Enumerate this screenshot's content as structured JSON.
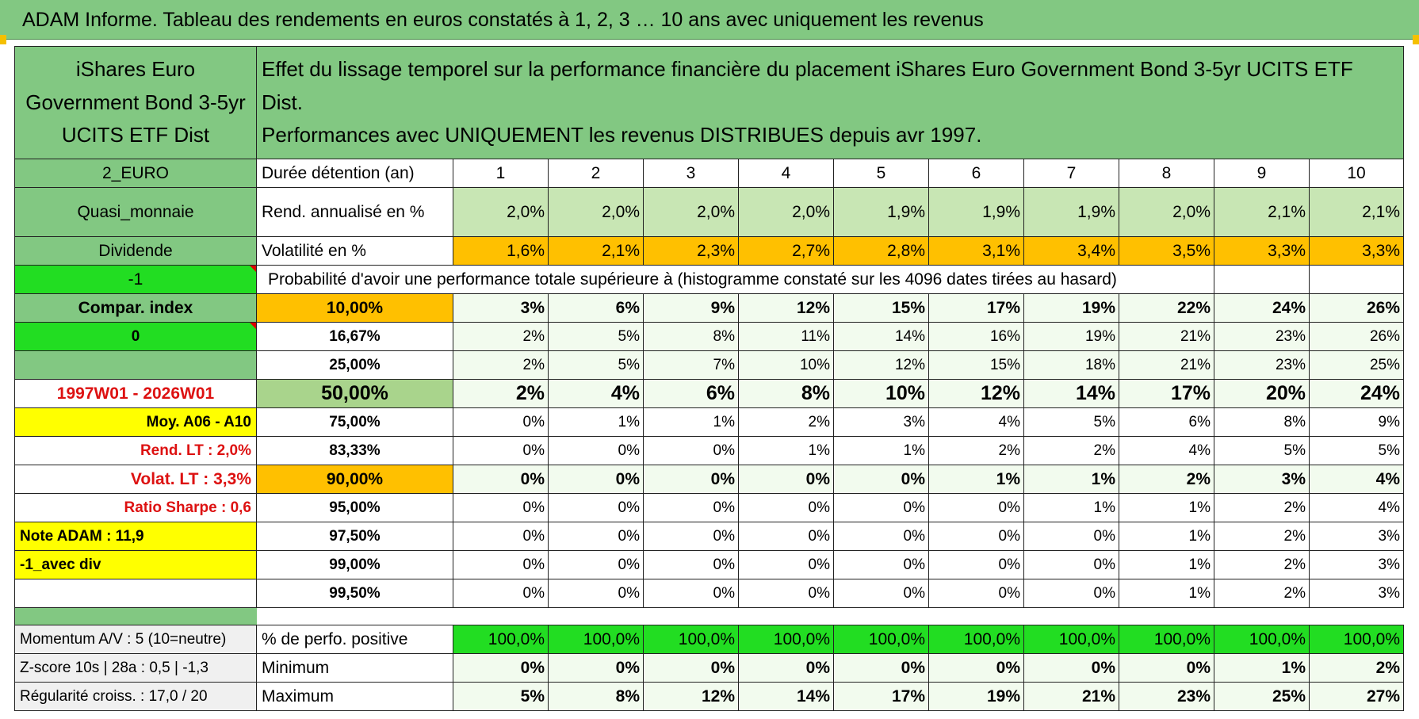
{
  "banner": {
    "title": "ADAM Informe. Tableau des rendements en euros constatés à 1, 2, 3 … 10 ans avec uniquement les revenus"
  },
  "fund": {
    "name": "iShares Euro Government Bond 3-5yr UCITS ETF Dist"
  },
  "header": {
    "line1": "Effet du lissage temporel sur la performance financière du placement iShares Euro Government Bond 3-5yr UCITS ETF Dist.",
    "line2": "Performances avec UNIQUEMENT les revenus DISTRIBUES depuis avr 1997."
  },
  "rows": {
    "durations": {
      "side": "2_EURO",
      "label": "Durée détention (an)",
      "values": [
        "1",
        "2",
        "3",
        "4",
        "5",
        "6",
        "7",
        "8",
        "9",
        "10"
      ]
    },
    "rend": {
      "side": "Quasi_monnaie",
      "label": "Rend. annualisé en %",
      "values": [
        "2,0%",
        "2,0%",
        "2,0%",
        "2,0%",
        "1,9%",
        "1,9%",
        "1,9%",
        "2,0%",
        "2,1%",
        "2,1%"
      ]
    },
    "vol": {
      "side": "Dividende",
      "label": "Volatilité en %",
      "values": [
        "1,6%",
        "2,1%",
        "2,3%",
        "2,7%",
        "2,8%",
        "3,1%",
        "3,4%",
        "3,5%",
        "3,3%",
        "3,3%"
      ]
    },
    "prob": {
      "side": "-1",
      "label": "Probabilité d'avoir une performance totale supérieure à (histogramme constaté sur les 4096 dates tirées au hasard)"
    }
  },
  "percentiles": [
    {
      "side": "Compar. index",
      "pct": "10,00%",
      "values": [
        "3%",
        "6%",
        "9%",
        "12%",
        "15%",
        "17%",
        "19%",
        "22%",
        "24%",
        "26%"
      ]
    },
    {
      "side": "0",
      "pct": "16,67%",
      "values": [
        "2%",
        "5%",
        "8%",
        "11%",
        "14%",
        "16%",
        "19%",
        "21%",
        "23%",
        "26%"
      ]
    },
    {
      "side": "",
      "pct": "25,00%",
      "values": [
        "2%",
        "5%",
        "7%",
        "10%",
        "12%",
        "15%",
        "18%",
        "21%",
        "23%",
        "25%"
      ]
    },
    {
      "side": "1997W01 - 2026W01",
      "pct": "50,00%",
      "values": [
        "2%",
        "4%",
        "6%",
        "8%",
        "10%",
        "12%",
        "14%",
        "17%",
        "20%",
        "24%"
      ]
    },
    {
      "side": "Moy. A06 - A10",
      "pct": "75,00%",
      "values": [
        "0%",
        "1%",
        "1%",
        "2%",
        "3%",
        "4%",
        "5%",
        "6%",
        "8%",
        "9%"
      ]
    },
    {
      "side": "Rend. LT :    2,0%",
      "pct": "83,33%",
      "values": [
        "0%",
        "0%",
        "0%",
        "1%",
        "1%",
        "2%",
        "2%",
        "4%",
        "5%",
        "5%"
      ]
    },
    {
      "side": "Volat. LT :    3,3%",
      "pct": "90,00%",
      "values": [
        "0%",
        "0%",
        "0%",
        "0%",
        "0%",
        "1%",
        "1%",
        "2%",
        "3%",
        "4%"
      ]
    },
    {
      "side": "Ratio Sharpe :     0,6",
      "pct": "95,00%",
      "values": [
        "0%",
        "0%",
        "0%",
        "0%",
        "0%",
        "0%",
        "1%",
        "1%",
        "2%",
        "4%"
      ]
    },
    {
      "side": "Note ADAM : 11,9",
      "pct": "97,50%",
      "values": [
        "0%",
        "0%",
        "0%",
        "0%",
        "0%",
        "0%",
        "0%",
        "1%",
        "2%",
        "3%"
      ]
    },
    {
      "side": "-1_avec div",
      "pct": "99,00%",
      "values": [
        "0%",
        "0%",
        "0%",
        "0%",
        "0%",
        "0%",
        "0%",
        "1%",
        "2%",
        "3%"
      ]
    },
    {
      "side": "",
      "pct": "99,50%",
      "values": [
        "0%",
        "0%",
        "0%",
        "0%",
        "0%",
        "0%",
        "0%",
        "1%",
        "2%",
        "3%"
      ]
    }
  ],
  "bottom": [
    {
      "side": "Momentum A/V : 5 (10=neutre)",
      "label": "% de perfo. positive",
      "values": [
        "100,0%",
        "100,0%",
        "100,0%",
        "100,0%",
        "100,0%",
        "100,0%",
        "100,0%",
        "100,0%",
        "100,0%",
        "100,0%"
      ]
    },
    {
      "side": "Z-score 10s | 28a : 0,5 | -1,3",
      "label": "Minimum",
      "values": [
        "0%",
        "0%",
        "0%",
        "0%",
        "0%",
        "0%",
        "0%",
        "0%",
        "1%",
        "2%"
      ]
    },
    {
      "side": "Régularité croiss. : 17,0 / 20",
      "label": "Maximum",
      "values": [
        "5%",
        "8%",
        "12%",
        "14%",
        "17%",
        "19%",
        "21%",
        "23%",
        "25%",
        "27%"
      ]
    }
  ]
}
